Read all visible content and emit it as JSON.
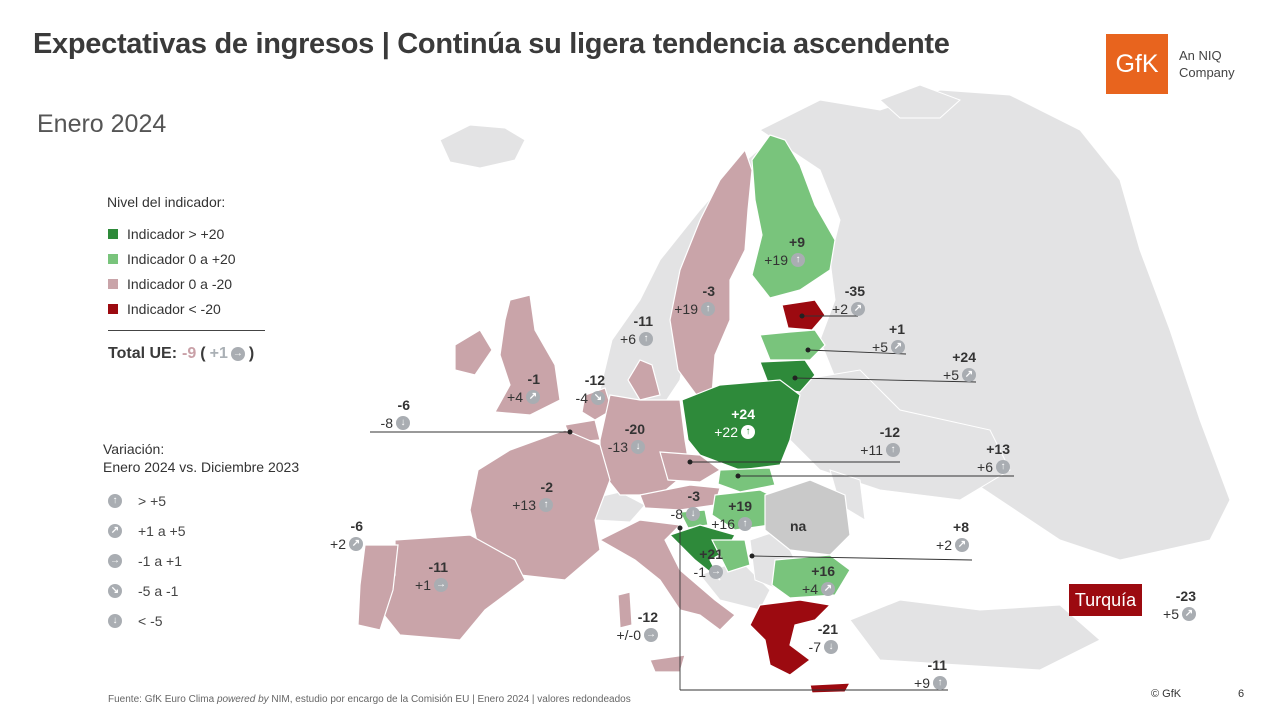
{
  "title": "Expectativas de ingresos | Continúa su ligera tendencia ascendente",
  "subtitle": "Enero 2024",
  "logo": {
    "mark": "GfK",
    "line1": "An NIQ",
    "line2": "Company"
  },
  "colors": {
    "dark_green": "#2e8a3a",
    "light_green": "#79c47c",
    "pink": "#c9a4a9",
    "dark_red": "#9c0a10",
    "grey": "#e3e3e4",
    "arrow_grey": "#a9adb2"
  },
  "legend": {
    "title": "Nivel del indicador:",
    "items": [
      {
        "label": "Indicador > +20",
        "color": "#2e8a3a"
      },
      {
        "label": "Indicador 0 a +20",
        "color": "#79c47c"
      },
      {
        "label": "Indicador 0 a -20",
        "color": "#c9a4a9"
      },
      {
        "label": "Indicador < -20",
        "color": "#9c0a10"
      }
    ]
  },
  "total": {
    "label": "Total UE:",
    "value": "-9",
    "open": "(",
    "change": "+1",
    "close": ")",
    "icon": "arrow-right"
  },
  "variation": {
    "title1": "Variación:",
    "title2": "Enero 2024 vs. Diciembre 2023",
    "items": [
      {
        "label": "> +5",
        "icon": "arrow-up",
        "glyph": "↑"
      },
      {
        "label": "+1 a +5",
        "icon": "arrow-up-right",
        "glyph": "↗"
      },
      {
        "label": "-1 a +1",
        "icon": "arrow-right",
        "glyph": "→"
      },
      {
        "label": "-5 a -1",
        "icon": "arrow-down-right",
        "glyph": "↘"
      },
      {
        "label": "< -5",
        "icon": "arrow-down",
        "glyph": "↓"
      }
    ]
  },
  "countries": [
    {
      "id": "finland",
      "value": "+9",
      "change": "+19",
      "glyph": "↑"
    },
    {
      "id": "sweden",
      "value": "-3",
      "change": "+19",
      "glyph": "↑"
    },
    {
      "id": "estonia",
      "value": "-35",
      "change": "+2",
      "glyph": "↗"
    },
    {
      "id": "latvia",
      "value": "+1",
      "change": "+5",
      "glyph": "↗"
    },
    {
      "id": "lithuania",
      "value": "+24",
      "change": "+5",
      "glyph": "↗"
    },
    {
      "id": "denmark",
      "value": "-11",
      "change": "+6",
      "glyph": "↑"
    },
    {
      "id": "ireland",
      "value": "",
      "change": "",
      "glyph": ""
    },
    {
      "id": "uk",
      "value": "-1",
      "change": "+4",
      "glyph": "↗"
    },
    {
      "id": "netherlands",
      "value": "-12",
      "change": "-4",
      "glyph": "↘"
    },
    {
      "id": "belgium",
      "value": "-6",
      "change": "-8",
      "glyph": "↓"
    },
    {
      "id": "germany",
      "value": "-20",
      "change": "-13",
      "glyph": "↓"
    },
    {
      "id": "poland",
      "value": "+24",
      "change": "+22",
      "glyph": "↑"
    },
    {
      "id": "czechia",
      "value": "-12",
      "change": "+11",
      "glyph": "↑"
    },
    {
      "id": "slovakia",
      "value": "+13",
      "change": "+6",
      "glyph": "↑"
    },
    {
      "id": "france",
      "value": "-2",
      "change": "+13",
      "glyph": "↑"
    },
    {
      "id": "austria",
      "value": "-3",
      "change": "-8",
      "glyph": "↓"
    },
    {
      "id": "hungary",
      "value": "+19",
      "change": "+16",
      "glyph": "↑"
    },
    {
      "id": "slovenia",
      "value": "+8",
      "change": "+2",
      "glyph": "↗"
    },
    {
      "id": "croatia",
      "value": "+21",
      "change": "-1",
      "glyph": "→"
    },
    {
      "id": "romania",
      "value": "+16",
      "change": "+4",
      "glyph": "↗"
    },
    {
      "id": "portugal",
      "value": "-6",
      "change": "+2",
      "glyph": "↗"
    },
    {
      "id": "spain",
      "value": "-11",
      "change": "+1",
      "glyph": "→"
    },
    {
      "id": "italy",
      "value": "-12",
      "change": "+/-0",
      "glyph": "→"
    },
    {
      "id": "greece",
      "value": "-21",
      "change": "-7",
      "glyph": "↓"
    },
    {
      "id": "malta",
      "value": "-11",
      "change": "+9",
      "glyph": "↑"
    },
    {
      "id": "turkey",
      "name": "Turquía",
      "value": "-23",
      "change": "+5",
      "glyph": "↗"
    }
  ],
  "na_label": "na",
  "source": {
    "a": "Fuente: GfK Euro Clima ",
    "b": "powered by",
    "c": " NIM,  estudio por encargo de la Comisión  EU | Enero  2024 | valores redondeados"
  },
  "copyright": "© GfK",
  "page_number": "6"
}
